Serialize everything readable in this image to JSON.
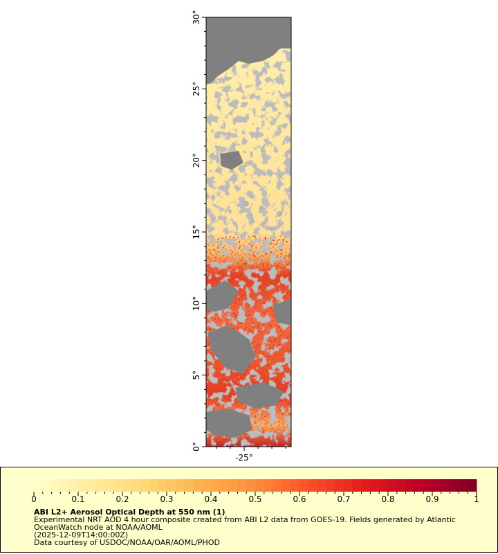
{
  "map": {
    "lat_labels": [
      "30°",
      "25°",
      "20°",
      "15°",
      "10°",
      "5°",
      "0°"
    ],
    "lat_values": [
      30,
      25,
      20,
      15,
      10,
      5,
      0
    ],
    "lon_labels": [
      "-25°"
    ],
    "lon_values": [
      -25
    ],
    "no_data_color": "#808080",
    "land_color": "#b4b4b4"
  },
  "legend": {
    "ticks": [
      "0",
      "0.1",
      "0.2",
      "0.3",
      "0.4",
      "0.5",
      "0.6",
      "0.7",
      "0.8",
      "0.9",
      "1"
    ],
    "range": [
      0,
      1
    ],
    "colormap": [
      "#ffffcc",
      "#ffeda0",
      "#fed976",
      "#feb24c",
      "#fd8d3c",
      "#fc4e2a",
      "#e31a1c",
      "#bd0026",
      "#800026"
    ],
    "title": "ABI L2+ Aerosol Optical Depth at 550 nm (1)",
    "description": "Experimental NRT AOD 4 hour composite created from ABI L2 data from GOES-19. Fields generated by Atlantic OceanWatch node at NOAA/AOML",
    "time": "(2025-12-09T14:00:00Z)",
    "credit": "Data courtesy of USDOC/NOAA/OAR/AOML/PHOD",
    "background": "#ffffcc"
  }
}
